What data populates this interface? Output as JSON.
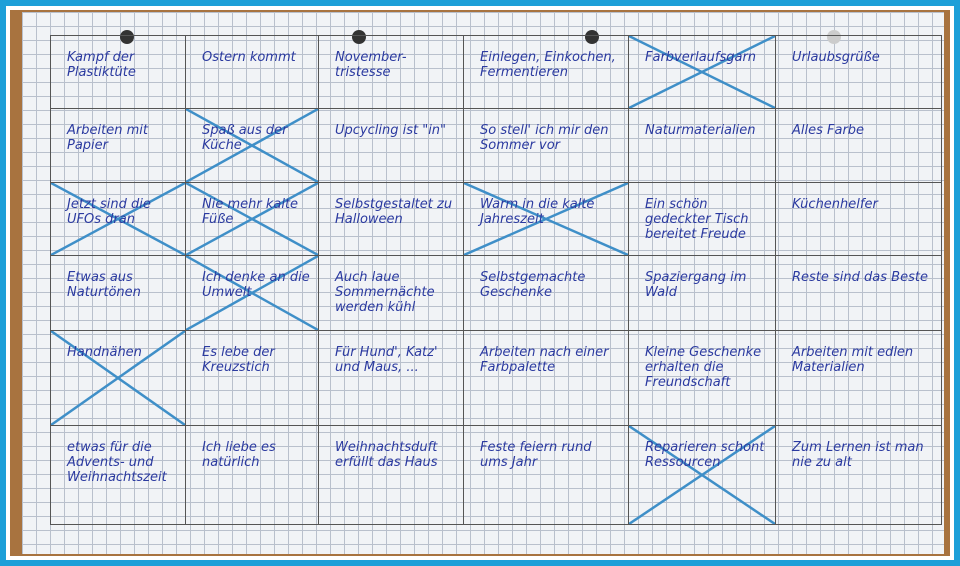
{
  "ink_color": "#2b3aa0",
  "cross_color": "#3f8fc8",
  "frame_color": "#1d9fd8",
  "grid": [
    [
      {
        "text": "Kampf der Plastiktüte",
        "crossed": false
      },
      {
        "text": "Ostern kommt",
        "crossed": false
      },
      {
        "text": "November-tristesse",
        "crossed": false
      },
      {
        "text": "Einlegen, Einkochen, Fermentieren",
        "crossed": false
      },
      {
        "text": "Farbverlaufsgarn",
        "crossed": true
      },
      {
        "text": "Urlaubsgrüße",
        "crossed": false
      }
    ],
    [
      {
        "text": "Arbeiten mit Papier",
        "crossed": false
      },
      {
        "text": "Spaß aus der Küche",
        "crossed": true
      },
      {
        "text": "Upcycling ist \"in\"",
        "crossed": false
      },
      {
        "text": "So stell' ich mir den Sommer vor",
        "crossed": false
      },
      {
        "text": "Naturmaterialien",
        "crossed": false
      },
      {
        "text": "Alles Farbe",
        "crossed": false
      }
    ],
    [
      {
        "text": "Jetzt sind die UFOs dran",
        "crossed": true
      },
      {
        "text": "Nie mehr kalte Füße",
        "crossed": true
      },
      {
        "text": "Selbstgestaltet zu Halloween",
        "crossed": false
      },
      {
        "text": "Warm in die kalte Jahreszeit",
        "crossed": true
      },
      {
        "text": "Ein schön gedeckter Tisch bereitet Freude",
        "crossed": false
      },
      {
        "text": "Küchenhelfer",
        "crossed": false
      }
    ],
    [
      {
        "text": "Etwas aus Naturtönen",
        "crossed": false
      },
      {
        "text": "Ich denke an die Umwelt",
        "crossed": true
      },
      {
        "text": "Auch laue Sommernächte werden kühl",
        "crossed": false
      },
      {
        "text": "Selbstgemachte Geschenke",
        "crossed": false
      },
      {
        "text": "Spaziergang im Wald",
        "crossed": false
      },
      {
        "text": "Reste sind das Beste",
        "crossed": false
      }
    ],
    [
      {
        "text": "Handnähen",
        "crossed": true
      },
      {
        "text": "Es lebe der Kreuzstich",
        "crossed": false
      },
      {
        "text": "Für Hund', Katz' und Maus, ...",
        "crossed": false
      },
      {
        "text": "Arbeiten nach einer Farbpalette",
        "crossed": false
      },
      {
        "text": "Kleine Geschenke erhalten die Freundschaft",
        "crossed": false
      },
      {
        "text": "Arbeiten mit edlen Materialien",
        "crossed": false
      }
    ],
    [
      {
        "text": "etwas für die Advents- und Weihnachtszeit",
        "crossed": false
      },
      {
        "text": "Ich liebe es natürlich",
        "crossed": false
      },
      {
        "text": "Weihnachtsduft erfüllt das Haus",
        "crossed": false
      },
      {
        "text": "Feste feiern rund ums Jahr",
        "crossed": false
      },
      {
        "text": "Reparieren schont Ressourcen",
        "crossed": true
      },
      {
        "text": "Zum Lernen ist man nie zu alt",
        "crossed": false
      }
    ]
  ]
}
